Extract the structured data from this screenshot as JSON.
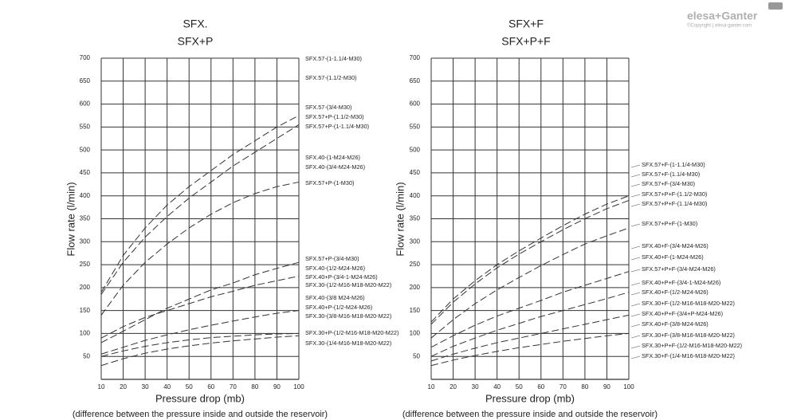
{
  "logo": {
    "brand": "elesa+Ganter",
    "copyright": "©Copyright | elesa-ganter.com"
  },
  "chart_data": [
    {
      "type": "line",
      "title": "SFX.",
      "subtitle": "SFX+P",
      "xlabel": "Pressure drop (mb)",
      "xlabel_note": "(difference between the pressure inside and outside the reservoir)",
      "ylabel": "Flow rate (l/min)",
      "x": [
        10,
        20,
        30,
        40,
        50,
        60,
        70,
        80,
        90,
        100
      ],
      "series": [
        {
          "color": "#333333",
          "values": [
            190,
            270,
            330,
            380,
            420,
            455,
            490,
            520,
            550,
            575
          ]
        },
        {
          "color": "#333333",
          "values": [
            185,
            255,
            310,
            355,
            395,
            430,
            465,
            495,
            525,
            555
          ]
        },
        {
          "color": "#333333",
          "values": [
            140,
            205,
            255,
            295,
            330,
            360,
            385,
            405,
            420,
            430
          ]
        },
        {
          "color": "#333333",
          "values": [
            80,
            105,
            130,
            155,
            175,
            195,
            210,
            228,
            242,
            255
          ]
        },
        {
          "color": "#333333",
          "values": [
            90,
            115,
            135,
            150,
            165,
            180,
            192,
            205,
            215,
            225
          ]
        },
        {
          "color": "#333333",
          "values": [
            55,
            70,
            85,
            97,
            108,
            118,
            127,
            136,
            144,
            150
          ]
        },
        {
          "color": "#333333",
          "values": [
            50,
            62,
            72,
            80,
            86,
            91,
            94,
            97,
            99,
            100
          ]
        },
        {
          "color": "#333333",
          "values": [
            30,
            45,
            57,
            66,
            73,
            79,
            84,
            88,
            92,
            95
          ]
        }
      ],
      "annotations": [
        "SFX.57-(1-1.1/4-M30)",
        "SFX.57-(1.1/2-M30)",
        "SFX.57-(3/4-M30)",
        "SFX.57+P-(1.1/2-M30)",
        "SFX.57+P-(1-1.1/4-M30)",
        "SFX.40-(1-M24-M26)",
        "SFX.40-(3/4-M24-M26)",
        "SFX.57+P-(1-M30)",
        "SFX.57+P-(3/4-M30)",
        "SFX.40-(1/2-M24-M26)",
        "SFX.40+P-(3/4-1-M24-M26)",
        "SFX.30-(1/2-M16-M18-M20-M22)",
        "SFX.40-(3/8 M24-M26)",
        "SFX.40+P-(1/2-M24-M26)",
        "SFX.30-(3/8-M16-M18-M20-M22)",
        "SFX.30+P-(1/2-M16-M18-M20-M22)",
        "SFX.30-(1/4-M16-M18-M20-M22)"
      ],
      "xlim": [
        10,
        100
      ],
      "ylim": [
        0,
        700
      ],
      "xticks": [
        10,
        20,
        30,
        40,
        50,
        60,
        70,
        80,
        90,
        100
      ],
      "yticks": [
        50,
        100,
        150,
        200,
        250,
        300,
        350,
        400,
        450,
        500,
        550,
        600,
        650,
        700
      ],
      "grid": true,
      "line_style": "dashed"
    },
    {
      "type": "line",
      "title": "SFX+F",
      "subtitle": "SFX+P+F",
      "xlabel": "Pressure drop (mb)",
      "xlabel_note": "(difference between the pressure inside and outside the reservoir)",
      "ylabel": "Flow rate (l/min)",
      "x": [
        10,
        20,
        30,
        40,
        50,
        60,
        70,
        80,
        90,
        100
      ],
      "series": [
        {
          "color": "#333333",
          "values": [
            125,
            175,
            215,
            250,
            280,
            308,
            335,
            360,
            382,
            400
          ]
        },
        {
          "color": "#333333",
          "values": [
            120,
            168,
            208,
            243,
            273,
            300,
            326,
            350,
            372,
            390
          ]
        },
        {
          "color": "#333333",
          "values": [
            90,
            130,
            165,
            195,
            222,
            248,
            272,
            295,
            313,
            330
          ]
        },
        {
          "color": "#333333",
          "values": [
            70,
            95,
            118,
            138,
            155,
            172,
            190,
            205,
            220,
            235
          ]
        },
        {
          "color": "#333333",
          "values": [
            50,
            72,
            90,
            107,
            122,
            137,
            150,
            163,
            176,
            190
          ]
        },
        {
          "color": "#333333",
          "values": [
            40,
            55,
            68,
            80,
            90,
            100,
            110,
            120,
            130,
            140
          ]
        },
        {
          "color": "#333333",
          "values": [
            30,
            42,
            52,
            61,
            69,
            76,
            83,
            89,
            95,
            100
          ]
        }
      ],
      "annotations": [
        "SFX.57+F-(1-1.1/4-M30)",
        "SFX.57+F-(1.1/4-M30)",
        "SFX.57+F-(3/4-M30)",
        "SFX.57+P+F-(1.1/2-M30)",
        "SFX.57+P+F-(1.1/4-M30)",
        "SFX.57+P+F-(1-M30)",
        "SFX.40+F-(3/4-M24-M26)",
        "SFX.40+F-(1-M24-M26)",
        "SFX.57+P+F-(3/4-M24-M26)",
        "SFX.40+P+F-(3/4-1-M24-M26)",
        "SFX.40+F-(1/2-M24-M26)",
        "SFX.30+F-(1/2-M16-M18-M20-M22)",
        "SFX.40+P+F-(3/4+P-M24-M26)",
        "SFX.40+F-(3/8-M24-M26)",
        "SFX.30+F-(3/8-M16-M18-M20-M22)",
        "SFX.30+P+F-(1/2-M16-M18-M20-M22)",
        "SFX.30+F-(1/4-M16-M18-M20-M22)"
      ],
      "xlim": [
        10,
        100
      ],
      "ylim": [
        0,
        700
      ],
      "xticks": [
        10,
        20,
        30,
        40,
        50,
        60,
        70,
        80,
        90,
        100
      ],
      "yticks": [
        50,
        100,
        150,
        200,
        250,
        300,
        350,
        400,
        450,
        500,
        550,
        600,
        650,
        700
      ],
      "grid": true,
      "line_style": "dashed"
    }
  ]
}
